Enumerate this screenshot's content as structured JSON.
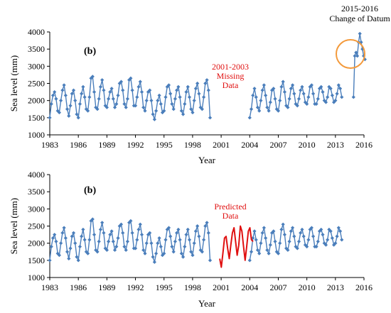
{
  "chart_data": [
    {
      "type": "line",
      "panel_label": "(b)",
      "xlabel": "Year",
      "ylabel": "Sea level (mm)",
      "xlim": [
        1983,
        2016
      ],
      "ylim": [
        1000,
        4000
      ],
      "x_ticks": [
        "1983",
        "1986",
        "1989",
        "1992",
        "1995",
        "1998",
        "2001",
        "2004",
        "2007",
        "2010",
        "2013",
        "2016"
      ],
      "y_ticks": [
        "1000",
        "1500",
        "2000",
        "2500",
        "3000",
        "3500",
        "4000"
      ],
      "grid": false,
      "legend": "none",
      "annotations": [
        {
          "lines": [
            "2001-2003",
            "Missing",
            "Data"
          ],
          "color": "#e01010"
        },
        {
          "lines": [
            "2015-2016",
            "Change of Datum"
          ],
          "color": "#000000"
        }
      ],
      "series": [
        {
          "color": "#4a7ebb",
          "marker": "diamond",
          "segments": [
            {
              "start": 1983.0,
              "step": 0.1667,
              "values": [
                1500,
                1900,
                2150,
                2250,
                2050,
                1700,
                1650,
                2000,
                2300,
                2450,
                2150,
                1750,
                1550,
                1850,
                2200,
                2300,
                2000,
                1600,
                1500,
                1900,
                2200,
                2400,
                2100,
                1750,
                1700,
                2100,
                2650,
                2700,
                2250,
                1800,
                1750,
                2050,
                2400,
                2600,
                2300,
                1850,
                1800,
                2050,
                2250,
                2350,
                2050,
                1800,
                1900,
                2150,
                2500,
                2550,
                2300,
                1900,
                1800,
                2050,
                2600,
                2650,
                2300,
                1850,
                1850,
                2100,
                2400,
                2550,
                2250,
                1800,
                1700,
                2000,
                2250,
                2300,
                2000,
                1600,
                1450,
                1700,
                2000,
                2150,
                1900,
                1650,
                1700,
                2100,
                2400,
                2450,
                2200,
                1900,
                1750,
                2050,
                2300,
                2400,
                2100,
                1700,
                1600,
                1900,
                2250,
                2400,
                2100,
                1750,
                1650,
                2000,
                2350,
                2500,
                2200,
                1800,
                1750,
                2100,
                2500,
                2600,
                2300,
                1500
              ]
            },
            {
              "start": 2004.0,
              "step": 0.1667,
              "values": [
                1500,
                1750,
                2150,
                2350,
                2100,
                1800,
                1700,
                2000,
                2300,
                2450,
                2150,
                1800,
                1700,
                1950,
                2300,
                2350,
                2050,
                1750,
                1700,
                2000,
                2400,
                2550,
                2250,
                1850,
                1800,
                2050,
                2350,
                2450,
                2200,
                1900,
                1850,
                2050,
                2300,
                2400,
                2200,
                1950,
                1900,
                2100,
                2400,
                2450,
                2200,
                1900,
                1900,
                2050,
                2350,
                2400,
                2250,
                2000,
                1950,
                2100,
                2400,
                2350,
                2150,
                1950,
                2000,
                2200,
                2450,
                2350,
                2100
              ]
            },
            {
              "start": 2014.9,
              "step": 0.1333,
              "values": [
                2100,
                3300,
                3400,
                3300,
                3700,
                3950,
                3700,
                3500,
                3300,
                3200
              ]
            }
          ]
        }
      ]
    },
    {
      "type": "line",
      "panel_label": "(b)",
      "xlabel": "Year",
      "ylabel": "Sea level (mm)",
      "xlim": [
        1983,
        2016
      ],
      "ylim": [
        1000,
        4000
      ],
      "x_ticks": [
        "1983",
        "1986",
        "1989",
        "1992",
        "1995",
        "1998",
        "2001",
        "2004",
        "2007",
        "2010",
        "2013",
        "2016"
      ],
      "y_ticks": [
        "1000",
        "1500",
        "2000",
        "2500",
        "3000",
        "3500",
        "4000"
      ],
      "grid": false,
      "legend": "none",
      "annotations": [
        {
          "lines": [
            "Predicted",
            "Data"
          ],
          "color": "#e01010"
        }
      ],
      "series": [
        {
          "color": "#4a7ebb",
          "marker": "diamond",
          "segments": [
            {
              "start": 1983.0,
              "step": 0.1667,
              "values": [
                1500,
                1900,
                2150,
                2250,
                2050,
                1700,
                1650,
                2000,
                2300,
                2450,
                2150,
                1750,
                1550,
                1850,
                2200,
                2300,
                2000,
                1600,
                1500,
                1900,
                2200,
                2400,
                2100,
                1750,
                1700,
                2100,
                2650,
                2700,
                2250,
                1800,
                1750,
                2050,
                2400,
                2600,
                2300,
                1850,
                1800,
                2050,
                2250,
                2350,
                2050,
                1800,
                1900,
                2150,
                2500,
                2550,
                2300,
                1900,
                1800,
                2050,
                2600,
                2650,
                2300,
                1850,
                1850,
                2100,
                2400,
                2550,
                2250,
                1800,
                1700,
                2000,
                2250,
                2300,
                2000,
                1600,
                1450,
                1700,
                2000,
                2150,
                1900,
                1650,
                1700,
                2100,
                2400,
                2450,
                2200,
                1900,
                1750,
                2050,
                2300,
                2400,
                2100,
                1700,
                1600,
                1900,
                2250,
                2400,
                2100,
                1750,
                1650,
                2000,
                2350,
                2500,
                2200,
                1800,
                1750,
                2100,
                2500,
                2600,
                2300,
                1500
              ]
            },
            {
              "start": 2004.0,
              "step": 0.1667,
              "values": [
                1500,
                1750,
                2150,
                2350,
                2100,
                1800,
                1700,
                2000,
                2300,
                2450,
                2150,
                1800,
                1700,
                1950,
                2300,
                2350,
                2050,
                1750,
                1700,
                2000,
                2400,
                2550,
                2250,
                1850,
                1800,
                2050,
                2350,
                2450,
                2200,
                1900,
                1850,
                2050,
                2300,
                2400,
                2200,
                1950,
                1900,
                2100,
                2400,
                2450,
                2200,
                1900,
                1900,
                2050,
                2350,
                2400,
                2250,
                2000,
                1950,
                2100,
                2400,
                2350,
                2150,
                1950,
                2000,
                2200,
                2450,
                2350,
                2100
              ]
            }
          ]
        },
        {
          "color": "#e01010",
          "marker": "none",
          "segments": [
            {
              "start": 2000.85,
              "step": 0.1667,
              "values": [
                1550,
                1300,
                1700,
                2150,
                2200,
                1850,
                1550,
                1950,
                2300,
                2450,
                2050,
                1650,
                1950,
                2500,
                2350,
                1900,
                1500,
                1900,
                2350,
                2450,
                2100,
                2050
              ]
            }
          ]
        }
      ]
    }
  ]
}
